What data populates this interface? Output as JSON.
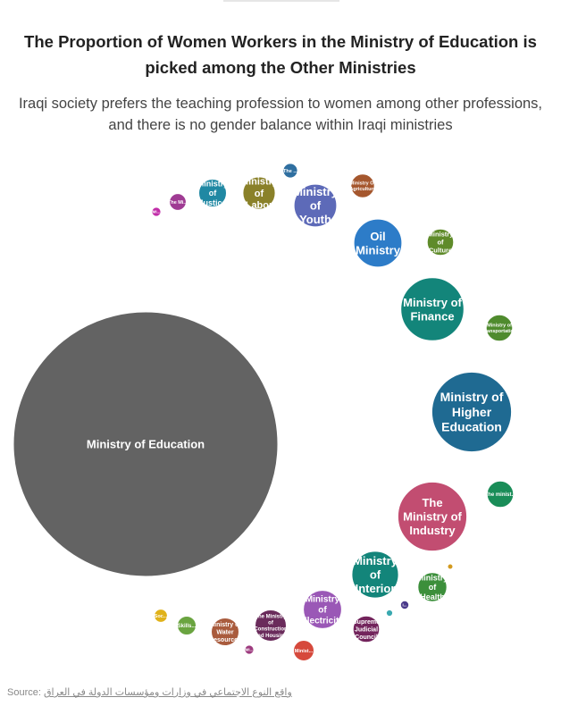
{
  "title": "The Proportion of Women Workers in the Ministry of Education is picked among the Other Ministries",
  "subtitle": "Iraqi society prefers the teaching profession to women among other professions, and there is no gender balance within Iraqi ministries",
  "source_label": "Source:",
  "source_text": "واقع النوع الاجتماعي في وزارات ومؤسسات الدولة في العراق",
  "chart_data": {
    "type": "bubble",
    "title": "The Proportion of Women Workers in the Ministry of Education is picked among the Other Ministries",
    "subtitle": "Iraqi society prefers the teaching profession to women among other professions, and there is no gender balance within Iraqi ministries",
    "bubbles": [
      {
        "label": "Ministry of Education",
        "value": 100,
        "color": "#636363"
      },
      {
        "label": "Ministry of Higher Education",
        "value": 9.1,
        "color": "#1f6a92"
      },
      {
        "label": "The Ministry of Industry",
        "value": 6.8,
        "color": "#c24d71"
      },
      {
        "label": "Ministry of Finance",
        "value": 5.7,
        "color": "#13857a"
      },
      {
        "label": "Ministry of Interior",
        "value": 3.1,
        "color": "#13857a"
      },
      {
        "label": "Oil Ministry",
        "value": 3.3,
        "color": "#2d7cc8"
      },
      {
        "label": "Ministry of Youth",
        "value": 2.6,
        "color": "#5d6ab8"
      },
      {
        "label": "Ministry of Electricity",
        "value": 2.1,
        "color": "#9a58b6"
      },
      {
        "label": "Ministry of Labor",
        "value": 1.5,
        "color": "#8a8129"
      },
      {
        "label": "Ministry of Justice",
        "value": 1.1,
        "color": "#2088a3"
      },
      {
        "label": "Ministry of Health",
        "value": 1.2,
        "color": "#3c8f3b"
      },
      {
        "label": "The Ministry of Construction and Housing",
        "value": 1.4,
        "color": "#6a2b5b"
      },
      {
        "label": "Ministry of Water Resources",
        "value": 1.1,
        "color": "#a95b3d"
      },
      {
        "label": "Ministry of Transportation",
        "value": 1.0,
        "color": "#4f8b2e"
      },
      {
        "label": "Ministry of Culture",
        "value": 1.0,
        "color": "#5f8b2a"
      },
      {
        "label": "The minist...",
        "value": 1.0,
        "color": "#1a8d58"
      },
      {
        "label": "Supreme Judicial Council",
        "value": 1.0,
        "color": "#73245c"
      },
      {
        "label": "Ministry Of Agriculture",
        "value": 0.8,
        "color": "#a5572e"
      },
      {
        "label": "Minist...",
        "value": 0.6,
        "color": "#d6493c"
      },
      {
        "label": "Skills...",
        "value": 0.5,
        "color": "#6aa440"
      },
      {
        "label": "The Mi...",
        "value": 0.4,
        "color": "#9f3b93"
      },
      {
        "label": "The ...",
        "value": 0.3,
        "color": "#2f6fa0"
      },
      {
        "label": "Soc...",
        "value": 0.25,
        "color": "#e0b21a"
      },
      {
        "label": "Mi...",
        "value": 0.12,
        "color": "#c12da8"
      },
      {
        "label": "Mi...",
        "value": 0.12,
        "color": "#9d3a7e"
      },
      {
        "label": "I...",
        "value": 0.1,
        "color": "#4a3a8a"
      },
      {
        "label": "",
        "value": 0.06,
        "color": "#3aa9b0"
      },
      {
        "label": "",
        "value": 0.04,
        "color": "#d39a1e"
      }
    ]
  }
}
